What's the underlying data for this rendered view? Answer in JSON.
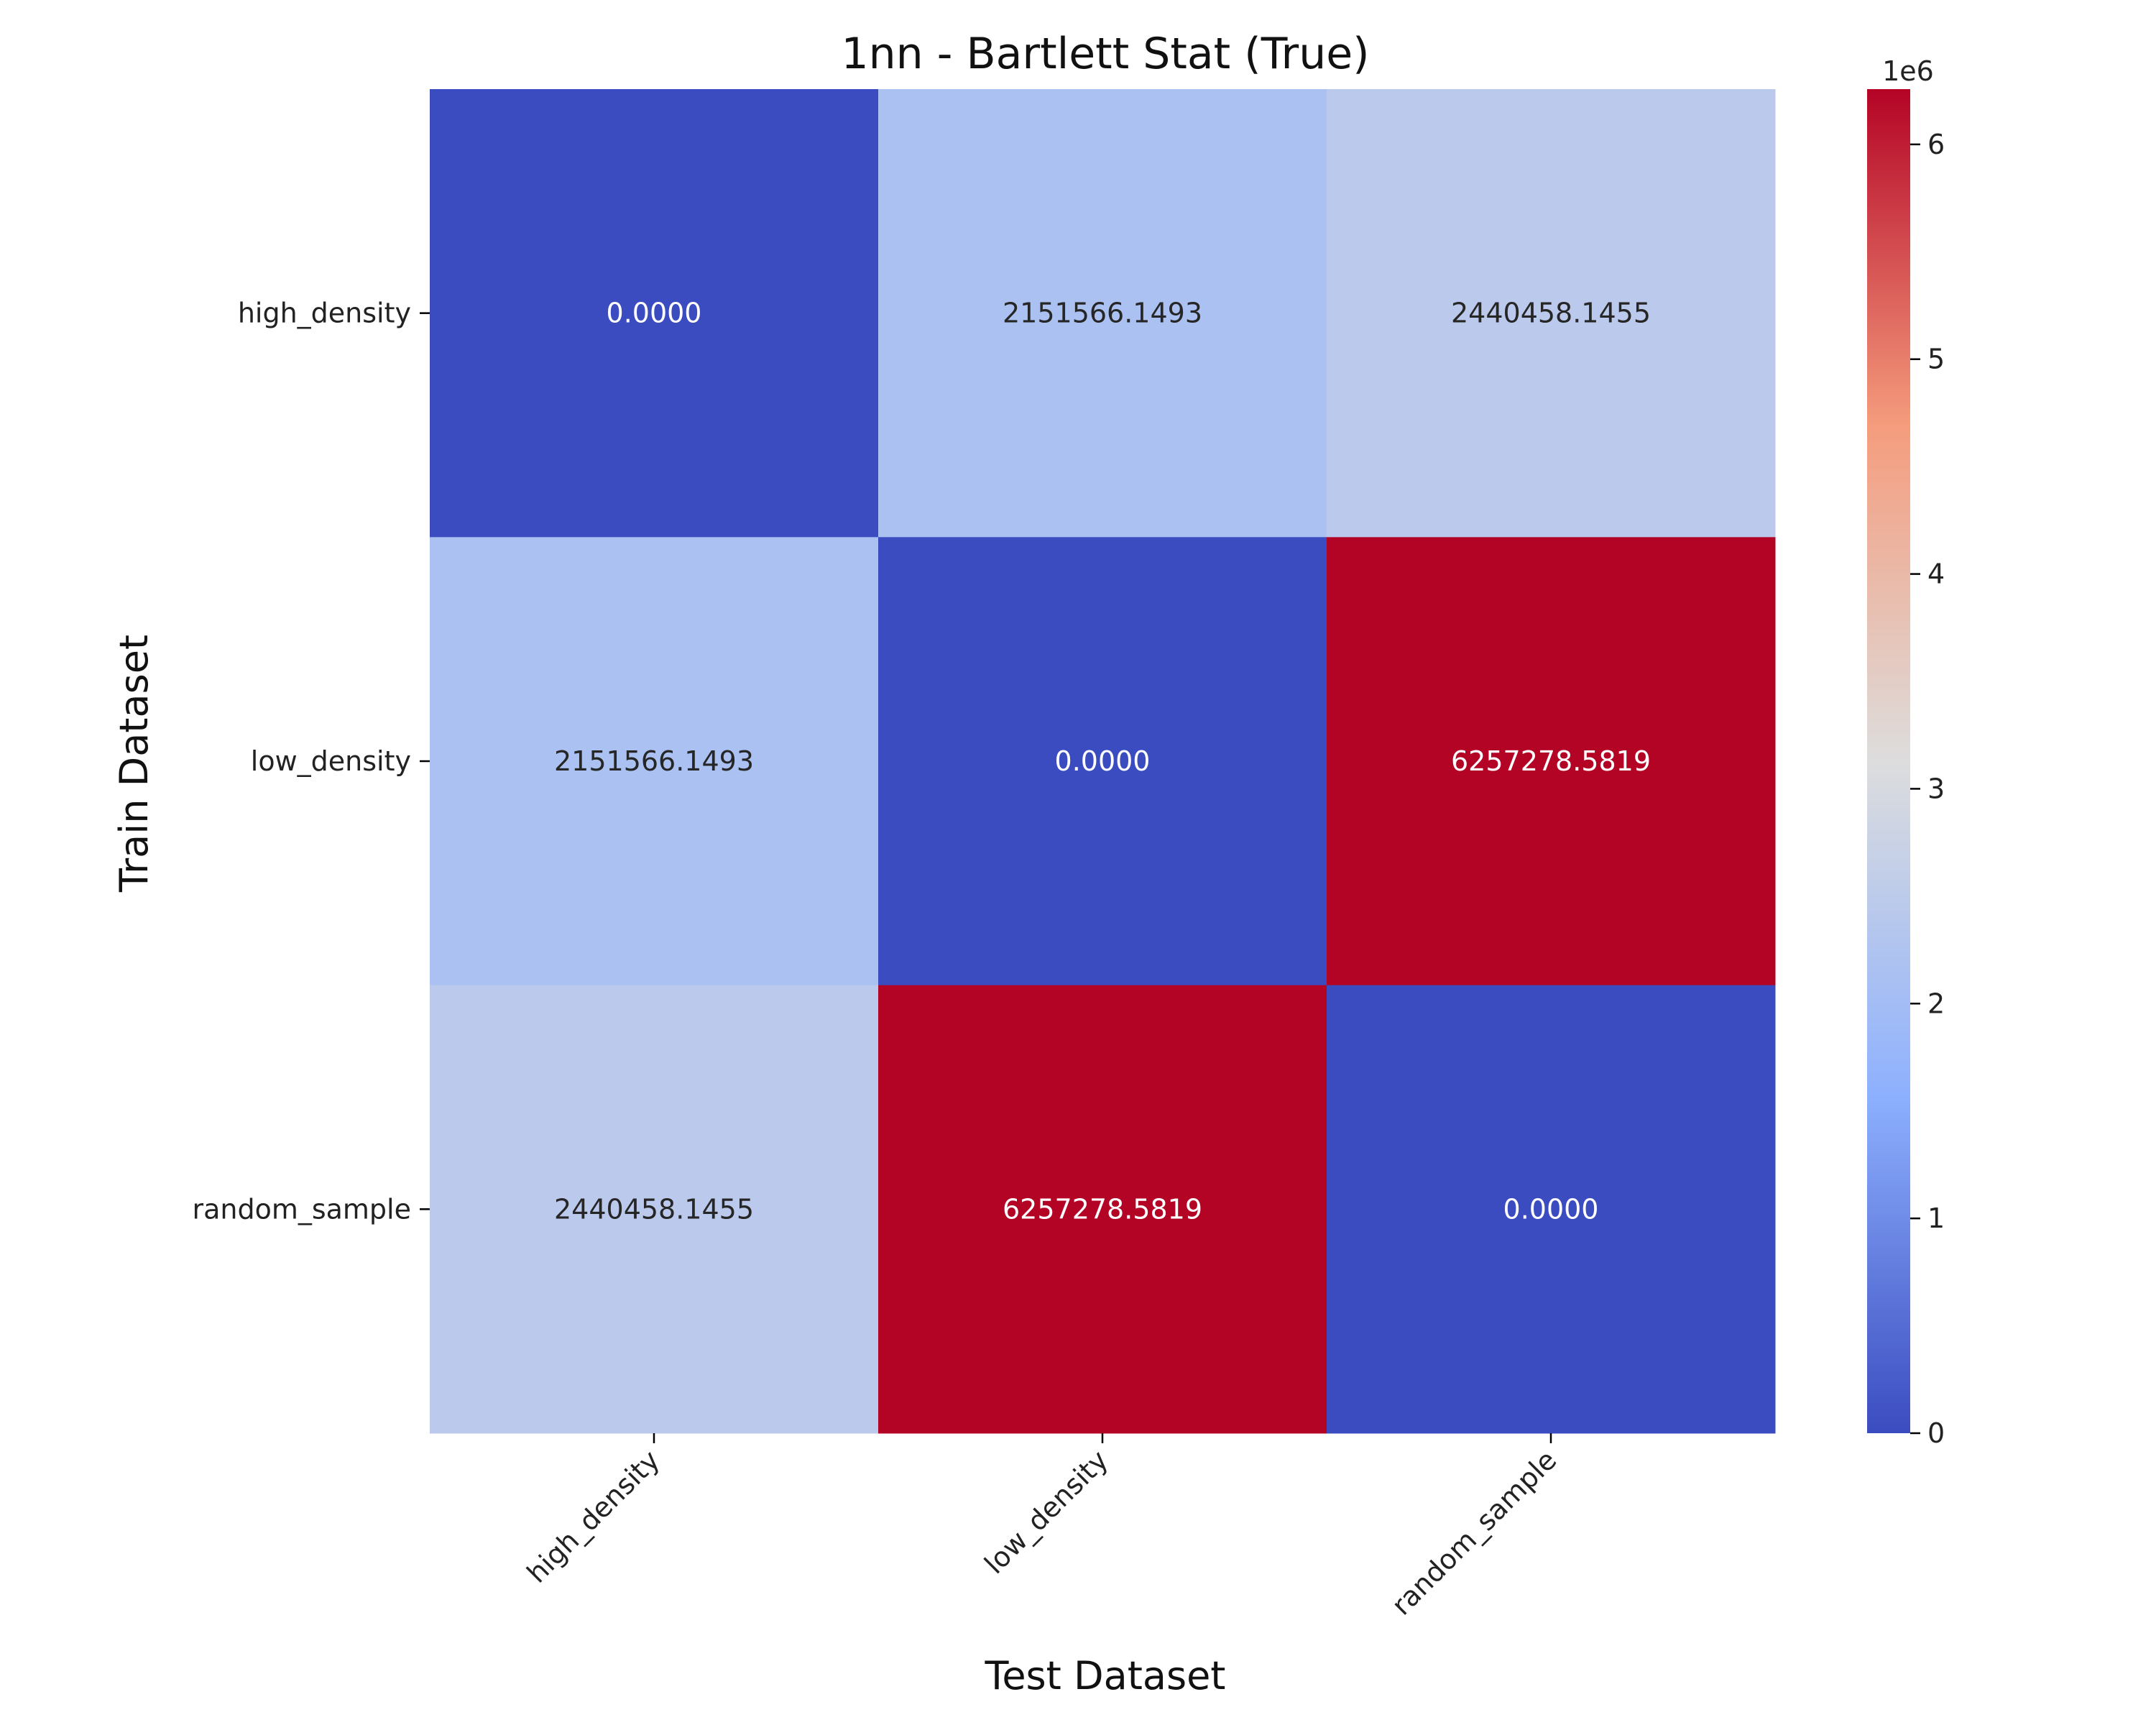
{
  "chart_data": {
    "type": "heatmap",
    "title": "1nn - Bartlett Stat (True)",
    "xlabel": "Test Dataset",
    "ylabel": "Train Dataset",
    "x_categories": [
      "high_density",
      "low_density",
      "random_sample"
    ],
    "y_categories": [
      "high_density",
      "low_density",
      "random_sample"
    ],
    "values": [
      [
        0.0,
        2151566.1493,
        2440458.1455
      ],
      [
        2151566.1493,
        0.0,
        6257278.5819
      ],
      [
        2440458.1455,
        6257278.5819,
        0.0
      ]
    ],
    "cell_labels": [
      [
        "0.0000",
        "2151566.1493",
        "2440458.1455"
      ],
      [
        "2151566.1493",
        "0.0000",
        "6257278.5819"
      ],
      [
        "2440458.1455",
        "6257278.5819",
        "0.0000"
      ]
    ],
    "colormap": "coolwarm",
    "colorbar": {
      "range": [
        0,
        6257278.5819
      ],
      "ticks": [
        0,
        1,
        2,
        3,
        4,
        5,
        6
      ],
      "tick_labels": [
        "0",
        "1",
        "2",
        "3",
        "4",
        "5",
        "6"
      ],
      "offset_label": "1e6"
    },
    "x_tick_rotation_deg": 45,
    "grid": false,
    "legend": "colorbar-right"
  }
}
